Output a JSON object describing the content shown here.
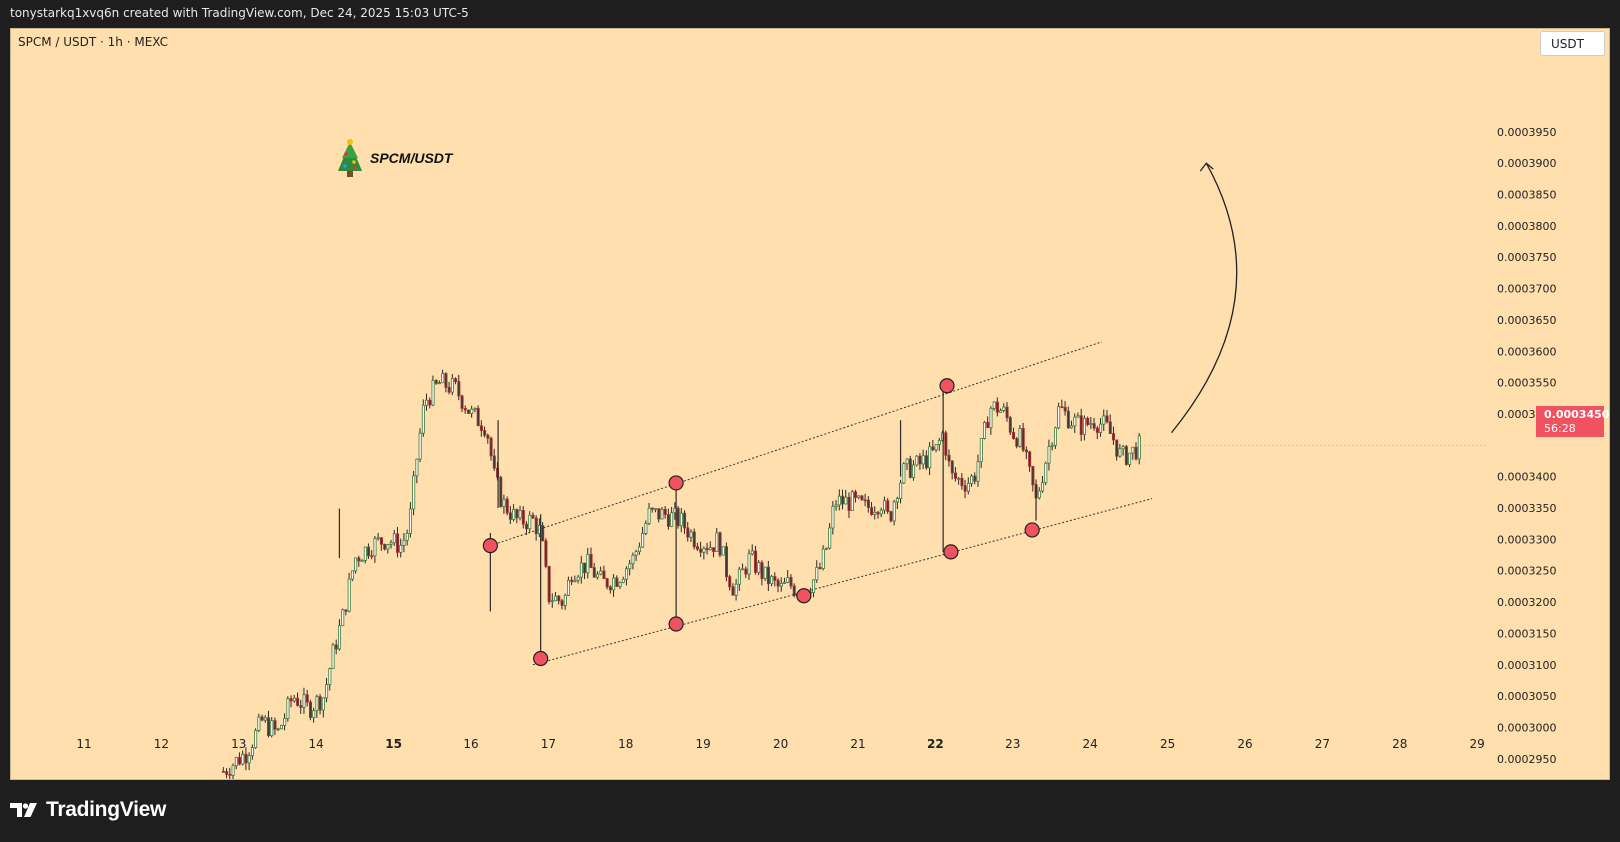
{
  "header": {
    "credit": "tonystarkq1xvq6n created with TradingView.com, Dec 24, 2025 15:03 UTC-5"
  },
  "chart": {
    "symbol": "SPCM / USDT · 1h · MEXC",
    "currency_button": "USDT",
    "annotation_text": "SPCM/USDT",
    "price_tag": {
      "price": "0.0003450",
      "countdown": "56:28"
    }
  },
  "footer": {
    "brand": "TradingView"
  },
  "colors": {
    "background": "#ffdfae",
    "bull": "#3a7a3a",
    "bear": "#b03030",
    "marker": "#f0525f",
    "price_tag": "#f0525f"
  },
  "chart_data": {
    "type": "candlestick",
    "timeframe": "1h",
    "exchange": "MEXC",
    "x_ticks": [
      {
        "label": "11",
        "bold": false
      },
      {
        "label": "12",
        "bold": false
      },
      {
        "label": "13",
        "bold": false
      },
      {
        "label": "14",
        "bold": false
      },
      {
        "label": "15",
        "bold": true
      },
      {
        "label": "16",
        "bold": false
      },
      {
        "label": "17",
        "bold": false
      },
      {
        "label": "18",
        "bold": false
      },
      {
        "label": "19",
        "bold": false
      },
      {
        "label": "20",
        "bold": false
      },
      {
        "label": "21",
        "bold": false
      },
      {
        "label": "22",
        "bold": true
      },
      {
        "label": "23",
        "bold": false
      },
      {
        "label": "24",
        "bold": false
      },
      {
        "label": "25",
        "bold": false
      },
      {
        "label": "26",
        "bold": false
      },
      {
        "label": "27",
        "bold": false
      },
      {
        "label": "28",
        "bold": false
      },
      {
        "label": "29",
        "bold": false
      }
    ],
    "y_ticks": [
      "0.0003950",
      "0.0003900",
      "0.0003850",
      "0.0003800",
      "0.0003750",
      "0.0003700",
      "0.0003650",
      "0.0003600",
      "0.0003550",
      "0.0003500",
      "0.0003400",
      "0.0003350",
      "0.0003300",
      "0.0003250",
      "0.0003200",
      "0.0003150",
      "0.0003100",
      "0.0003050",
      "0.0003000",
      "0.0002950"
    ],
    "ylim": [
      0.000291,
      0.000401
    ],
    "xlim_days": [
      10.2,
      29.5
    ],
    "last_price": 0.000345,
    "price_path": [
      [
        12.8,
        0.000293
      ],
      [
        13.1,
        0.000296
      ],
      [
        13.3,
        0.000301
      ],
      [
        13.5,
        0.000299
      ],
      [
        13.7,
        0.000305
      ],
      [
        13.9,
        0.000303
      ],
      [
        14.1,
        0.000305
      ],
      [
        14.2,
        0.000311
      ],
      [
        14.35,
        0.000318
      ],
      [
        14.5,
        0.000327
      ],
      [
        14.7,
        0.000329
      ],
      [
        14.9,
        0.00033
      ],
      [
        15.1,
        0.000329
      ],
      [
        15.2,
        0.000332
      ],
      [
        15.3,
        0.000343
      ],
      [
        15.4,
        0.000352
      ],
      [
        15.6,
        0.000355
      ],
      [
        15.8,
        0.000354
      ],
      [
        16.0,
        0.00035
      ],
      [
        16.2,
        0.000348
      ],
      [
        16.3,
        0.00034
      ],
      [
        16.4,
        0.000336
      ],
      [
        16.6,
        0.000333
      ],
      [
        16.8,
        0.000333
      ],
      [
        16.9,
        0.000331
      ],
      [
        17.0,
        0.000321
      ],
      [
        17.2,
        0.00032
      ],
      [
        17.3,
        0.000325
      ],
      [
        17.5,
        0.000326
      ],
      [
        17.7,
        0.000323
      ],
      [
        17.9,
        0.000324
      ],
      [
        18.1,
        0.000327
      ],
      [
        18.3,
        0.000334
      ],
      [
        18.5,
        0.000334
      ],
      [
        18.7,
        0.000333
      ],
      [
        18.9,
        0.00033
      ],
      [
        19.1,
        0.000329
      ],
      [
        19.2,
        0.00033
      ],
      [
        19.3,
        0.000325
      ],
      [
        19.4,
        0.000322
      ],
      [
        19.6,
        0.000327
      ],
      [
        19.8,
        0.000324
      ],
      [
        20.0,
        0.000322
      ],
      [
        20.1,
        0.000323
      ],
      [
        20.2,
        0.000322
      ],
      [
        20.4,
        0.000323
      ],
      [
        20.5,
        0.000325
      ],
      [
        20.6,
        0.000329
      ],
      [
        20.7,
        0.000336
      ],
      [
        20.9,
        0.000336
      ],
      [
        21.1,
        0.000335
      ],
      [
        21.3,
        0.000336
      ],
      [
        21.4,
        0.000333
      ],
      [
        21.5,
        0.000338
      ],
      [
        21.6,
        0.000341
      ],
      [
        21.8,
        0.000342
      ],
      [
        22.0,
        0.000344
      ],
      [
        22.1,
        0.000347
      ],
      [
        22.2,
        0.00034
      ],
      [
        22.4,
        0.000339
      ],
      [
        22.5,
        0.00034
      ],
      [
        22.6,
        0.000345
      ],
      [
        22.7,
        0.000351
      ],
      [
        22.8,
        0.000351
      ],
      [
        22.9,
        0.00035
      ],
      [
        23.0,
        0.000347
      ],
      [
        23.1,
        0.000346
      ],
      [
        23.2,
        0.000341
      ],
      [
        23.3,
        0.000336
      ],
      [
        23.45,
        0.000344
      ],
      [
        23.6,
        0.000351
      ],
      [
        23.75,
        0.000349
      ],
      [
        23.9,
        0.000348
      ],
      [
        24.05,
        0.000349
      ],
      [
        24.2,
        0.000348
      ],
      [
        24.3,
        0.000346
      ],
      [
        24.4,
        0.000343
      ],
      [
        24.55,
        0.000344
      ],
      [
        24.65,
        0.000345
      ]
    ],
    "spike_wicks": [
      {
        "day": 14.3,
        "high": 0.0003349,
        "low": 0.000327
      },
      {
        "day": 16.25,
        "high": 0.000331,
        "low": 0.0003185
      },
      {
        "day": 16.35,
        "high": 0.000349,
        "low": 0.000335
      },
      {
        "day": 16.9,
        "high": 0.000334,
        "low": 0.000311
      },
      {
        "day": 18.65,
        "high": 0.000339,
        "low": 0.000317
      },
      {
        "day": 21.55,
        "high": 0.000349,
        "low": 0.00034
      },
      {
        "day": 22.1,
        "high": 0.000355,
        "low": 0.000328
      },
      {
        "day": 23.3,
        "high": 0.000339,
        "low": 0.000333
      }
    ],
    "channel": {
      "upper": {
        "from": [
          16.25,
          0.000329
        ],
        "to": [
          24.15,
          0.0003615
        ]
      },
      "lower": {
        "from": [
          16.8,
          0.00031
        ],
        "to": [
          24.8,
          0.0003365
        ]
      }
    },
    "pivot_markers": [
      {
        "day": 16.25,
        "price": 0.000329
      },
      {
        "day": 16.9,
        "price": 0.000311
      },
      {
        "day": 18.65,
        "price": 0.000339
      },
      {
        "day": 18.65,
        "price": 0.0003165
      },
      {
        "day": 20.3,
        "price": 0.000321
      },
      {
        "day": 22.15,
        "price": 0.0003545
      },
      {
        "day": 22.2,
        "price": 0.000328
      },
      {
        "day": 23.25,
        "price": 0.0003315
      }
    ],
    "projection_arrow": {
      "from": [
        25.05,
        0.000347
      ],
      "to": [
        25.5,
        0.00039
      ]
    }
  }
}
